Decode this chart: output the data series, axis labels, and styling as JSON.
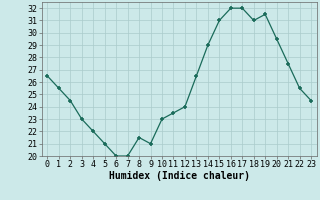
{
  "x": [
    0,
    1,
    2,
    3,
    4,
    5,
    6,
    7,
    8,
    9,
    10,
    11,
    12,
    13,
    14,
    15,
    16,
    17,
    18,
    19,
    20,
    21,
    22,
    23
  ],
  "y": [
    26.5,
    25.5,
    24.5,
    23.0,
    22.0,
    21.0,
    20.0,
    20.0,
    21.5,
    21.0,
    23.0,
    23.5,
    24.0,
    26.5,
    29.0,
    31.0,
    32.0,
    32.0,
    31.0,
    31.5,
    29.5,
    27.5,
    25.5,
    24.5
  ],
  "line_color": "#1a6b5a",
  "marker_color": "#1a6b5a",
  "bg_color": "#cce9e9",
  "grid_color": "#aacccc",
  "xlabel": "Humidex (Indice chaleur)",
  "xlim": [
    -0.5,
    23.5
  ],
  "ylim": [
    20,
    32.5
  ],
  "yticks": [
    20,
    21,
    22,
    23,
    24,
    25,
    26,
    27,
    28,
    29,
    30,
    31,
    32
  ],
  "xticks": [
    0,
    1,
    2,
    3,
    4,
    5,
    6,
    7,
    8,
    9,
    10,
    11,
    12,
    13,
    14,
    15,
    16,
    17,
    18,
    19,
    20,
    21,
    22,
    23
  ],
  "xtick_labels": [
    "0",
    "1",
    "2",
    "3",
    "4",
    "5",
    "6",
    "7",
    "8",
    "9",
    "10",
    "11",
    "12",
    "13",
    "14",
    "15",
    "16",
    "17",
    "18",
    "19",
    "20",
    "21",
    "22",
    "23"
  ],
  "tick_fontsize": 6,
  "label_fontsize": 7
}
